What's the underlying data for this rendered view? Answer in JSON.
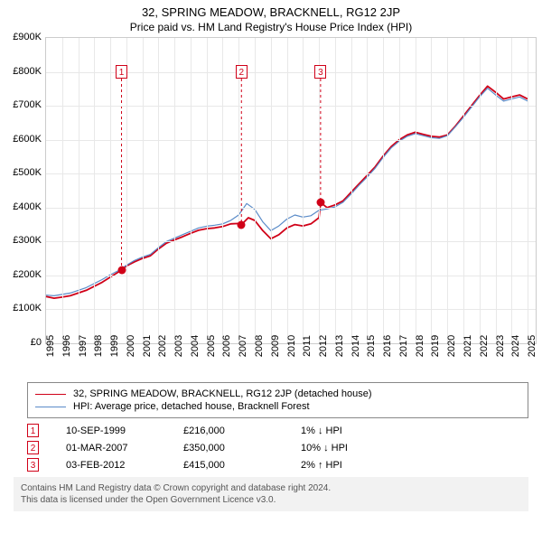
{
  "title": "32, SPRING MEADOW, BRACKNELL, RG12 2JP",
  "subtitle": "Price paid vs. HM Land Registry's House Price Index (HPI)",
  "chart": {
    "type": "line",
    "background_color": "#ffffff",
    "grid_color": "#e8e8e8",
    "axis_color": "#cccccc",
    "label_fontsize": 11,
    "x_years": [
      1995,
      1996,
      1997,
      1998,
      1999,
      2000,
      2001,
      2002,
      2003,
      2004,
      2005,
      2006,
      2007,
      2008,
      2009,
      2010,
      2011,
      2012,
      2013,
      2014,
      2015,
      2016,
      2017,
      2018,
      2019,
      2020,
      2021,
      2022,
      2023,
      2024,
      2025
    ],
    "xlim": [
      1995,
      2025.5
    ],
    "ylim": [
      0,
      900
    ],
    "ytick_step": 100,
    "y_prefix": "£",
    "y_suffix": "K",
    "series": [
      {
        "id": "property",
        "label": "32, SPRING MEADOW, BRACKNELL, RG12 2JP (detached house)",
        "color": "#d00018",
        "width": 1.8,
        "legend_weight": "bold",
        "points": [
          [
            1995.0,
            138
          ],
          [
            1995.5,
            133
          ],
          [
            1996.0,
            136
          ],
          [
            1996.5,
            140
          ],
          [
            1997.0,
            148
          ],
          [
            1997.5,
            156
          ],
          [
            1998.0,
            168
          ],
          [
            1998.5,
            180
          ],
          [
            1999.0,
            195
          ],
          [
            1999.5,
            210
          ],
          [
            1999.7,
            216
          ],
          [
            2000.0,
            228
          ],
          [
            2000.5,
            240
          ],
          [
            2001.0,
            250
          ],
          [
            2001.5,
            258
          ],
          [
            2002.0,
            278
          ],
          [
            2002.5,
            295
          ],
          [
            2003.0,
            305
          ],
          [
            2003.5,
            314
          ],
          [
            2004.0,
            324
          ],
          [
            2004.5,
            333
          ],
          [
            2005.0,
            338
          ],
          [
            2005.5,
            340
          ],
          [
            2006.0,
            344
          ],
          [
            2006.5,
            352
          ],
          [
            2007.0,
            353
          ],
          [
            2007.17,
            350
          ],
          [
            2007.6,
            370
          ],
          [
            2008.0,
            362
          ],
          [
            2008.5,
            332
          ],
          [
            2009.0,
            308
          ],
          [
            2009.5,
            320
          ],
          [
            2010.0,
            340
          ],
          [
            2010.5,
            350
          ],
          [
            2011.0,
            346
          ],
          [
            2011.5,
            352
          ],
          [
            2012.0,
            370
          ],
          [
            2012.1,
            415
          ],
          [
            2012.5,
            400
          ],
          [
            2013.0,
            408
          ],
          [
            2013.5,
            420
          ],
          [
            2014.0,
            445
          ],
          [
            2014.5,
            470
          ],
          [
            2015.0,
            495
          ],
          [
            2015.5,
            520
          ],
          [
            2016.0,
            552
          ],
          [
            2016.5,
            580
          ],
          [
            2017.0,
            600
          ],
          [
            2017.5,
            614
          ],
          [
            2018.0,
            622
          ],
          [
            2018.5,
            616
          ],
          [
            2019.0,
            610
          ],
          [
            2019.5,
            608
          ],
          [
            2020.0,
            614
          ],
          [
            2020.5,
            640
          ],
          [
            2021.0,
            670
          ],
          [
            2021.5,
            700
          ],
          [
            2022.0,
            730
          ],
          [
            2022.5,
            758
          ],
          [
            2023.0,
            740
          ],
          [
            2023.5,
            720
          ],
          [
            2024.0,
            726
          ],
          [
            2024.5,
            732
          ],
          [
            2025.0,
            720
          ]
        ]
      },
      {
        "id": "hpi",
        "label": "HPI: Average price, detached house, Bracknell Forest",
        "color": "#5a8bc8",
        "width": 1.2,
        "legend_weight": "normal",
        "points": [
          [
            1995.0,
            142
          ],
          [
            1995.5,
            140
          ],
          [
            1996.0,
            144
          ],
          [
            1996.5,
            148
          ],
          [
            1997.0,
            156
          ],
          [
            1997.5,
            164
          ],
          [
            1998.0,
            176
          ],
          [
            1998.5,
            188
          ],
          [
            1999.0,
            202
          ],
          [
            1999.5,
            214
          ],
          [
            2000.0,
            230
          ],
          [
            2000.5,
            244
          ],
          [
            2001.0,
            254
          ],
          [
            2001.5,
            262
          ],
          [
            2002.0,
            282
          ],
          [
            2002.5,
            300
          ],
          [
            2003.0,
            310
          ],
          [
            2003.5,
            320
          ],
          [
            2004.0,
            330
          ],
          [
            2004.5,
            340
          ],
          [
            2005.0,
            345
          ],
          [
            2005.5,
            348
          ],
          [
            2006.0,
            352
          ],
          [
            2006.5,
            362
          ],
          [
            2007.0,
            378
          ],
          [
            2007.5,
            412
          ],
          [
            2008.0,
            395
          ],
          [
            2008.5,
            358
          ],
          [
            2009.0,
            332
          ],
          [
            2009.5,
            346
          ],
          [
            2010.0,
            366
          ],
          [
            2010.5,
            378
          ],
          [
            2011.0,
            372
          ],
          [
            2011.5,
            376
          ],
          [
            2012.0,
            392
          ],
          [
            2012.5,
            396
          ],
          [
            2013.0,
            402
          ],
          [
            2013.5,
            416
          ],
          [
            2014.0,
            440
          ],
          [
            2014.5,
            466
          ],
          [
            2015.0,
            490
          ],
          [
            2015.5,
            516
          ],
          [
            2016.0,
            548
          ],
          [
            2016.5,
            576
          ],
          [
            2017.0,
            596
          ],
          [
            2017.5,
            610
          ],
          [
            2018.0,
            618
          ],
          [
            2018.5,
            612
          ],
          [
            2019.0,
            606
          ],
          [
            2019.5,
            604
          ],
          [
            2020.0,
            612
          ],
          [
            2020.5,
            638
          ],
          [
            2021.0,
            666
          ],
          [
            2021.5,
            696
          ],
          [
            2022.0,
            726
          ],
          [
            2022.5,
            752
          ],
          [
            2023.0,
            732
          ],
          [
            2023.5,
            714
          ],
          [
            2024.0,
            720
          ],
          [
            2024.5,
            726
          ],
          [
            2025.0,
            714
          ]
        ]
      }
    ],
    "markers": [
      {
        "n": "1",
        "x": 1999.7,
        "dot_y": 216,
        "box_top_y": 820
      },
      {
        "n": "2",
        "x": 2007.17,
        "dot_y": 350,
        "box_top_y": 820
      },
      {
        "n": "3",
        "x": 2012.1,
        "dot_y": 415,
        "box_top_y": 820
      }
    ],
    "marker_box_outline": "#d00018",
    "marker_box_text": "#d00018",
    "dot_color": "#d00018"
  },
  "events": [
    {
      "n": "1",
      "date": "10-SEP-1999",
      "price": "£216,000",
      "delta": "1% ↓ HPI"
    },
    {
      "n": "2",
      "date": "01-MAR-2007",
      "price": "£350,000",
      "delta": "10% ↓ HPI"
    },
    {
      "n": "3",
      "date": "03-FEB-2012",
      "price": "£415,000",
      "delta": "2% ↑ HPI"
    }
  ],
  "footnote_line1": "Contains HM Land Registry data © Crown copyright and database right 2024.",
  "footnote_line2": "This data is licensed under the Open Government Licence v3.0.",
  "footnote_bg": "#f2f2f2",
  "footnote_color": "#555555"
}
